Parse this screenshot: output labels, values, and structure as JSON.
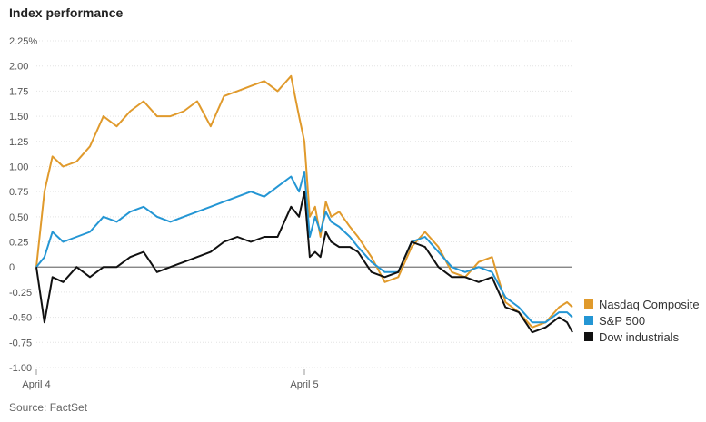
{
  "chart_data": {
    "type": "line",
    "title": "Index performance",
    "source": "Source: FactSet",
    "ylim": [
      -1.0,
      2.25
    ],
    "yticks": [
      {
        "value": 2.25,
        "label": "2.25%"
      },
      {
        "value": 2.0,
        "label": "2.00"
      },
      {
        "value": 1.75,
        "label": "1.75"
      },
      {
        "value": 1.5,
        "label": "1.50"
      },
      {
        "value": 1.25,
        "label": "1.25"
      },
      {
        "value": 1.0,
        "label": "1.00"
      },
      {
        "value": 0.75,
        "label": "0.75"
      },
      {
        "value": 0.5,
        "label": "0.50"
      },
      {
        "value": 0.25,
        "label": "0.25"
      },
      {
        "value": 0,
        "label": "0"
      },
      {
        "value": -0.25,
        "label": "-0.25"
      },
      {
        "value": -0.5,
        "label": "-0.50"
      },
      {
        "value": -0.75,
        "label": "-0.75"
      },
      {
        "value": -1.0,
        "label": "-1.00"
      }
    ],
    "xlim": [
      0,
      2
    ],
    "xticks": [
      {
        "value": 0,
        "label": "April 4"
      },
      {
        "value": 1,
        "label": "April 5"
      }
    ],
    "grid": true,
    "legend_position": "right",
    "series": [
      {
        "name": "Nasdaq Composite",
        "color": "#e09a2c",
        "x": [
          0,
          0.03,
          0.06,
          0.1,
          0.15,
          0.2,
          0.25,
          0.3,
          0.35,
          0.4,
          0.45,
          0.5,
          0.55,
          0.6,
          0.65,
          0.7,
          0.75,
          0.8,
          0.85,
          0.9,
          0.95,
          0.98,
          1.0,
          1.02,
          1.04,
          1.06,
          1.08,
          1.1,
          1.13,
          1.17,
          1.2,
          1.25,
          1.3,
          1.35,
          1.4,
          1.45,
          1.5,
          1.55,
          1.6,
          1.65,
          1.7,
          1.75,
          1.8,
          1.85,
          1.9,
          1.95,
          1.98,
          2.0
        ],
        "y": [
          0,
          0.75,
          1.1,
          1.0,
          1.05,
          1.2,
          1.5,
          1.4,
          1.55,
          1.65,
          1.5,
          1.5,
          1.55,
          1.65,
          1.4,
          1.7,
          1.75,
          1.8,
          1.85,
          1.75,
          1.9,
          1.5,
          1.25,
          0.5,
          0.6,
          0.3,
          0.65,
          0.5,
          0.55,
          0.4,
          0.3,
          0.1,
          -0.15,
          -0.1,
          0.2,
          0.35,
          0.2,
          -0.05,
          -0.1,
          0.05,
          0.1,
          -0.35,
          -0.45,
          -0.6,
          -0.55,
          -0.4,
          -0.35,
          -0.4
        ]
      },
      {
        "name": "S&P 500",
        "color": "#2496d4",
        "x": [
          0,
          0.03,
          0.06,
          0.1,
          0.15,
          0.2,
          0.25,
          0.3,
          0.35,
          0.4,
          0.45,
          0.5,
          0.55,
          0.6,
          0.65,
          0.7,
          0.75,
          0.8,
          0.85,
          0.9,
          0.95,
          0.98,
          1.0,
          1.02,
          1.04,
          1.06,
          1.08,
          1.1,
          1.13,
          1.17,
          1.2,
          1.25,
          1.3,
          1.35,
          1.4,
          1.45,
          1.5,
          1.55,
          1.6,
          1.65,
          1.7,
          1.75,
          1.8,
          1.85,
          1.9,
          1.95,
          1.98,
          2.0
        ],
        "y": [
          0,
          0.1,
          0.35,
          0.25,
          0.3,
          0.35,
          0.5,
          0.45,
          0.55,
          0.6,
          0.5,
          0.45,
          0.5,
          0.55,
          0.6,
          0.65,
          0.7,
          0.75,
          0.7,
          0.8,
          0.9,
          0.75,
          0.95,
          0.3,
          0.5,
          0.35,
          0.55,
          0.45,
          0.4,
          0.3,
          0.2,
          0.05,
          -0.05,
          -0.05,
          0.25,
          0.3,
          0.15,
          0.0,
          -0.05,
          0.0,
          -0.05,
          -0.3,
          -0.4,
          -0.55,
          -0.55,
          -0.45,
          -0.45,
          -0.5
        ]
      },
      {
        "name": "Dow industrials",
        "color": "#111111",
        "x": [
          0,
          0.03,
          0.06,
          0.1,
          0.15,
          0.2,
          0.25,
          0.3,
          0.35,
          0.4,
          0.45,
          0.5,
          0.55,
          0.6,
          0.65,
          0.7,
          0.75,
          0.8,
          0.85,
          0.9,
          0.95,
          0.98,
          1.0,
          1.02,
          1.04,
          1.06,
          1.08,
          1.1,
          1.13,
          1.17,
          1.2,
          1.25,
          1.3,
          1.35,
          1.4,
          1.45,
          1.5,
          1.55,
          1.6,
          1.65,
          1.7,
          1.75,
          1.8,
          1.85,
          1.9,
          1.95,
          1.98,
          2.0
        ],
        "y": [
          0,
          -0.55,
          -0.1,
          -0.15,
          0.0,
          -0.1,
          0.0,
          0.0,
          0.1,
          0.15,
          -0.05,
          0.0,
          0.05,
          0.1,
          0.15,
          0.25,
          0.3,
          0.25,
          0.3,
          0.3,
          0.6,
          0.5,
          0.75,
          0.1,
          0.15,
          0.1,
          0.35,
          0.25,
          0.2,
          0.2,
          0.15,
          -0.05,
          -0.1,
          -0.05,
          0.25,
          0.2,
          0.0,
          -0.1,
          -0.1,
          -0.15,
          -0.1,
          -0.4,
          -0.45,
          -0.65,
          -0.6,
          -0.5,
          -0.55,
          -0.65
        ]
      }
    ]
  }
}
